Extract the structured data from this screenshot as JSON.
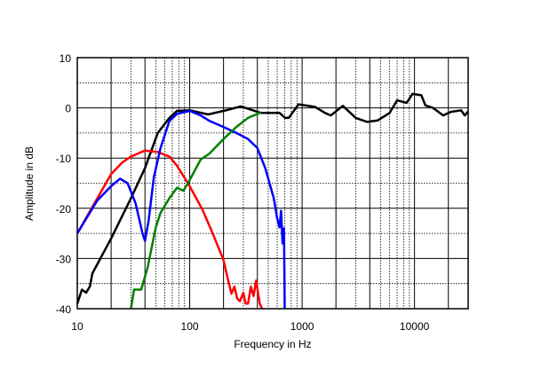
{
  "chart_data": {
    "type": "line",
    "title": "",
    "xlabel": "Frequency in Hz",
    "ylabel": "Amplitude in dB",
    "x_scale": "log",
    "xlim": [
      10,
      30000
    ],
    "ylim": [
      -40,
      10
    ],
    "x_ticks": [
      "10",
      "100",
      "1000",
      "10000"
    ],
    "y_ticks": [
      "10",
      "0",
      "-10",
      "-20",
      "-30",
      "-40"
    ],
    "grid": true,
    "series": [
      {
        "color": "#000000",
        "points": [
          [
            10,
            -39
          ],
          [
            11,
            -36.2
          ],
          [
            12,
            -36.8
          ],
          [
            13,
            -35.5
          ],
          [
            13.6,
            -33
          ],
          [
            20,
            -26
          ],
          [
            30,
            -18
          ],
          [
            40,
            -12
          ],
          [
            52,
            -5
          ],
          [
            66,
            -2
          ],
          [
            77,
            -0.6
          ],
          [
            100,
            -0.5
          ],
          [
            146,
            -1.3
          ],
          [
            210,
            -0.5
          ],
          [
            285,
            0.3
          ],
          [
            430,
            -1
          ],
          [
            630,
            -1
          ],
          [
            708,
            -2
          ],
          [
            760,
            -2
          ],
          [
            930,
            0.7
          ],
          [
            1300,
            0.2
          ],
          [
            1600,
            -1
          ],
          [
            1800,
            -1.5
          ],
          [
            2300,
            0.4
          ],
          [
            3000,
            -2
          ],
          [
            3800,
            -2.8
          ],
          [
            4700,
            -2.5
          ],
          [
            6000,
            -1
          ],
          [
            7000,
            1.5
          ],
          [
            8500,
            1
          ],
          [
            9600,
            2.8
          ],
          [
            11500,
            2.5
          ],
          [
            12500,
            0.5
          ],
          [
            14600,
            0
          ],
          [
            18000,
            -1.5
          ],
          [
            21000,
            -0.8
          ],
          [
            26000,
            -0.5
          ],
          [
            28000,
            -1.5
          ],
          [
            30000,
            -0.7
          ]
        ]
      },
      {
        "color": "#ff0000",
        "points": [
          [
            10,
            -25
          ],
          [
            20,
            -13.2
          ],
          [
            25,
            -10.9
          ],
          [
            30,
            -9.7
          ],
          [
            40,
            -8.5
          ],
          [
            52,
            -8.8
          ],
          [
            66,
            -9.7
          ],
          [
            77,
            -11.5
          ],
          [
            100,
            -15.6
          ],
          [
            130,
            -20.3
          ],
          [
            160,
            -25
          ],
          [
            200,
            -30.3
          ],
          [
            220,
            -34.4
          ],
          [
            235,
            -37
          ],
          [
            250,
            -35.6
          ],
          [
            265,
            -38
          ],
          [
            280,
            -38.5
          ],
          [
            300,
            -36.8
          ],
          [
            315,
            -39
          ],
          [
            330,
            -39
          ],
          [
            350,
            -35.6
          ],
          [
            370,
            -37.5
          ],
          [
            390,
            -34.4
          ],
          [
            420,
            -39
          ],
          [
            440,
            -40
          ]
        ]
      },
      {
        "color": "#0000ff",
        "points": [
          [
            10,
            -25
          ],
          [
            15,
            -18.5
          ],
          [
            20,
            -15.6
          ],
          [
            24,
            -14.1
          ],
          [
            28,
            -15
          ],
          [
            33,
            -19
          ],
          [
            38,
            -25
          ],
          [
            40,
            -26.5
          ],
          [
            43,
            -22.6
          ],
          [
            48,
            -13.8
          ],
          [
            55,
            -8
          ],
          [
            66,
            -2.6
          ],
          [
            77,
            -1.2
          ],
          [
            100,
            -0.6
          ],
          [
            125,
            -1.5
          ],
          [
            150,
            -2.6
          ],
          [
            200,
            -3.8
          ],
          [
            260,
            -5
          ],
          [
            330,
            -6.2
          ],
          [
            400,
            -8
          ],
          [
            470,
            -12
          ],
          [
            560,
            -18
          ],
          [
            600,
            -22
          ],
          [
            630,
            -23.8
          ],
          [
            650,
            -20.5
          ],
          [
            670,
            -27
          ],
          [
            690,
            -24
          ],
          [
            700,
            -40
          ]
        ]
      },
      {
        "color": "#008000",
        "points": [
          [
            30,
            -40
          ],
          [
            32,
            -36.2
          ],
          [
            37,
            -36.2
          ],
          [
            42,
            -32
          ],
          [
            50,
            -23.8
          ],
          [
            55,
            -20.9
          ],
          [
            66,
            -18
          ],
          [
            77,
            -15.9
          ],
          [
            88,
            -16.5
          ],
          [
            100,
            -14.4
          ],
          [
            125,
            -10.3
          ],
          [
            150,
            -9.1
          ],
          [
            200,
            -6.2
          ],
          [
            260,
            -3.8
          ],
          [
            330,
            -2
          ],
          [
            430,
            -0.9
          ]
        ]
      }
    ]
  }
}
